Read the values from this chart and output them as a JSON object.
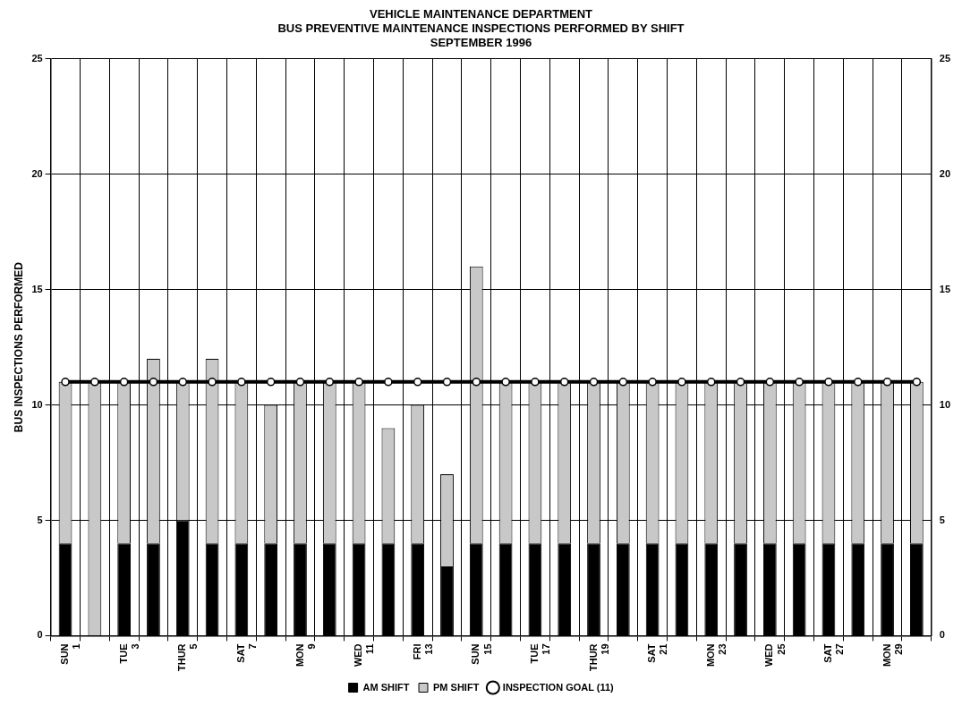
{
  "chart_data": {
    "type": "bar",
    "title": "VEHICLE MAINTENANCE DEPARTMENT",
    "subtitle": "BUS PREVENTIVE MAINTENANCE INSPECTIONS PERFORMED BY SHIFT\nSEPTEMBER 1996",
    "ylabel": "BUS INSPECTIONS PERFORMED",
    "categories": [
      "SUN 1",
      null,
      "TUE 3",
      null,
      "THUR 5",
      null,
      "SAT 7",
      null,
      "MON 9",
      null,
      "WED 11",
      null,
      "FRI 13",
      null,
      "SUN 15",
      null,
      "TUE 17",
      null,
      "THUR 19",
      null,
      "SAT 21",
      null,
      "MON 23",
      null,
      "WED 25",
      null,
      "SAT 27",
      null,
      "MON 29",
      null
    ],
    "stacked": true,
    "series": [
      {
        "name": "AM SHIFT",
        "color": "#000000",
        "values": [
          4,
          0,
          4,
          4,
          5,
          4,
          4,
          4,
          4,
          4,
          4,
          4,
          4,
          3,
          4,
          4,
          4,
          4,
          4,
          4,
          4,
          4,
          4,
          4,
          4,
          4,
          4,
          4,
          4,
          4
        ]
      },
      {
        "name": "PM SHIFT",
        "color": "#c8c8c8",
        "values": [
          7,
          11,
          7,
          8,
          6,
          8,
          7,
          6,
          7,
          7,
          7,
          5,
          6,
          4,
          12,
          7,
          7,
          7,
          7,
          7,
          7,
          7,
          7,
          7,
          7,
          7,
          7,
          7,
          7,
          7
        ]
      },
      {
        "name": "INSPECTION GOAL (11)",
        "type": "line",
        "color": "#000000",
        "marker": "circle",
        "values": [
          11,
          11,
          11,
          11,
          11,
          11,
          11,
          11,
          11,
          11,
          11,
          11,
          11,
          11,
          11,
          11,
          11,
          11,
          11,
          11,
          11,
          11,
          11,
          11,
          11,
          11,
          11,
          11,
          11,
          11
        ]
      }
    ],
    "ylim": [
      0,
      25
    ],
    "yticks": [
      0,
      5,
      10,
      15,
      20,
      25
    ],
    "y2lim": [
      0,
      25
    ],
    "y2ticks": [
      0,
      5,
      10,
      15,
      20,
      25
    ],
    "grid": true,
    "legend": "bottom"
  }
}
